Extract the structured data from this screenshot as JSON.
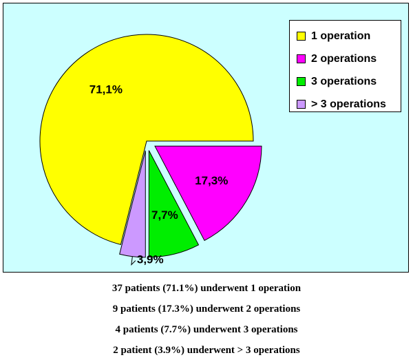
{
  "chart_data": {
    "type": "pie",
    "categories": [
      "1 operation",
      "2 operations",
      "3 operations",
      "> 3 operations"
    ],
    "values": [
      71.1,
      17.3,
      7.7,
      3.9
    ],
    "labels": [
      "71,1%",
      "17,3%",
      "7,7%",
      "3,9%"
    ],
    "colors": [
      "#ffff00",
      "#ff00ff",
      "#00ee00",
      "#cc99ff"
    ],
    "exploded": [
      false,
      true,
      true,
      true
    ],
    "legend": [
      "1 operation",
      "2 operations",
      "3 operations",
      "> 3 operations"
    ],
    "legend_position": "top-right",
    "background": "#ccffff"
  },
  "captions": [
    "37 patients (71.1%) underwent 1 operation",
    "9 patients (17.3%) underwent 2 operations",
    "4 patients (7.7%) underwent 3 operations",
    "2 patient (3.9%) underwent > 3 operations"
  ]
}
